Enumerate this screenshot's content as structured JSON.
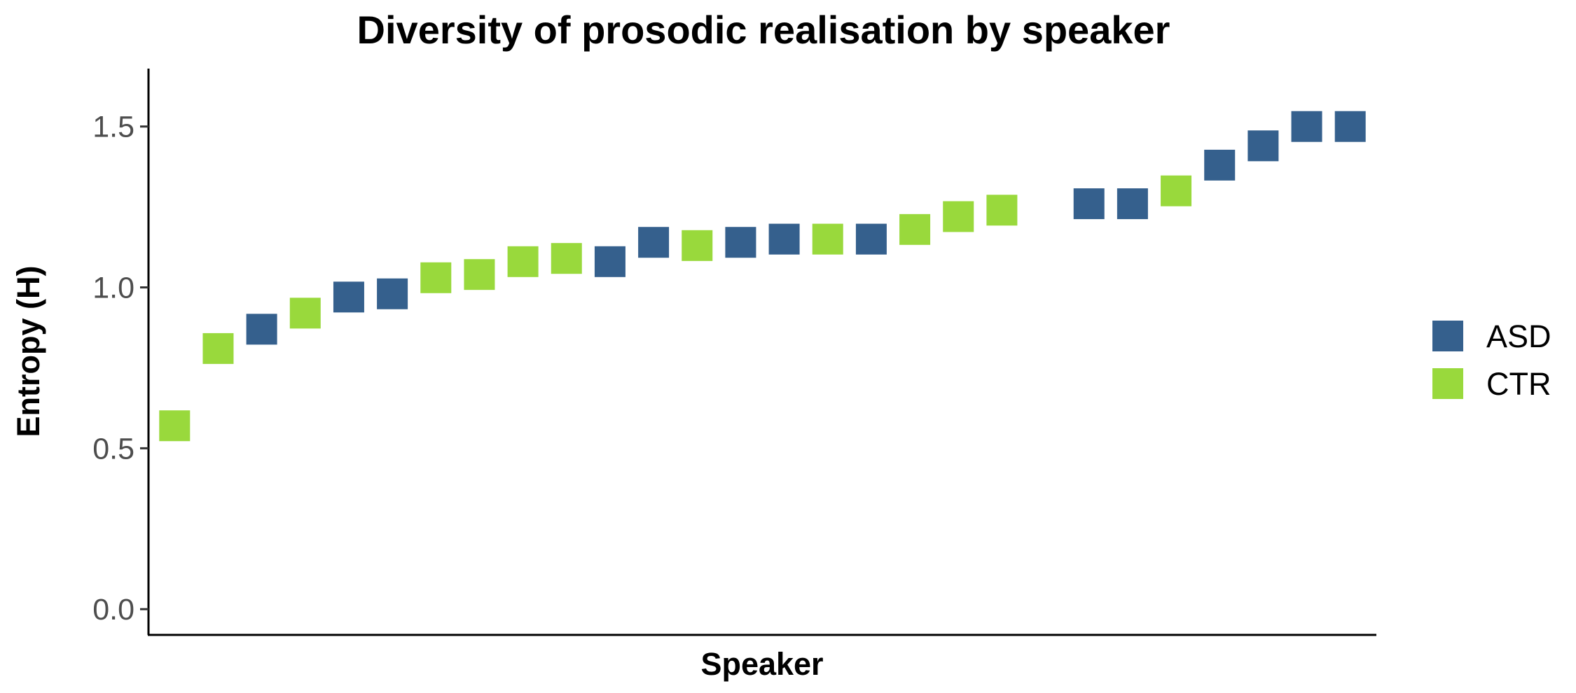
{
  "chart_data": {
    "type": "scatter",
    "title": "Diversity of prosodic realisation by speaker",
    "xlabel": "Speaker",
    "ylabel": "Entropy (H)",
    "ylim": [
      -0.08,
      1.68
    ],
    "yticks": [
      0.0,
      0.5,
      1.0,
      1.5
    ],
    "ytick_labels": [
      "0.0",
      "0.5",
      "1.0",
      "1.5"
    ],
    "grid": false,
    "legend_position": "right",
    "marker": "square",
    "colors": {
      "ASD": "#35608d",
      "CTR": "#99d93c"
    },
    "series": [
      {
        "name": "ASD",
        "x": [
          3,
          5,
          6,
          11,
          12,
          14,
          15,
          17,
          22,
          23,
          25,
          26,
          27,
          28
        ],
        "values": [
          0.87,
          0.97,
          0.98,
          1.08,
          1.14,
          1.14,
          1.15,
          1.15,
          1.26,
          1.26,
          1.38,
          1.44,
          1.5,
          1.5
        ]
      },
      {
        "name": "CTR",
        "x": [
          1,
          2,
          4,
          7,
          8,
          9,
          10,
          13,
          16,
          18,
          19,
          20,
          24
        ],
        "values": [
          0.57,
          0.81,
          0.92,
          1.03,
          1.04,
          1.08,
          1.09,
          1.13,
          1.15,
          1.18,
          1.22,
          1.24,
          1.3
        ]
      }
    ],
    "x_range": [
      0.4,
      28.6
    ]
  }
}
